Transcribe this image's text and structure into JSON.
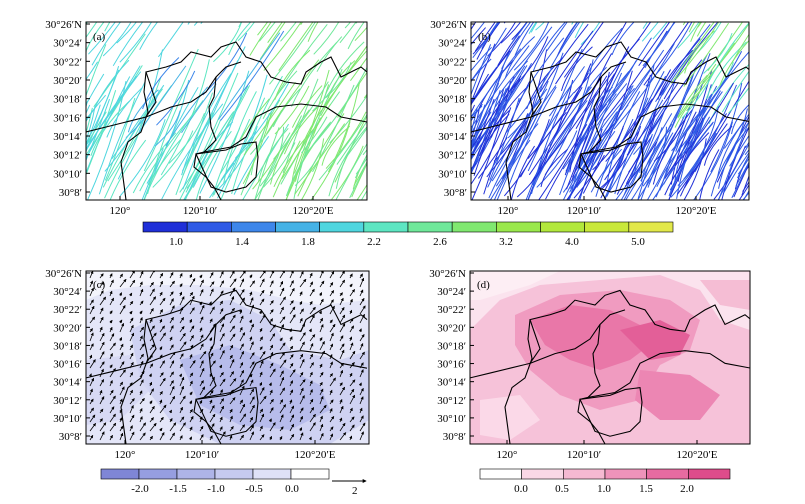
{
  "figure": {
    "panel_labels": [
      "(a)",
      "(b)",
      "(c)",
      "(d)"
    ],
    "y_ticks": [
      "30°26′N",
      "30°24′",
      "30°22′",
      "30°20′",
      "30°18′",
      "30°16′",
      "30°14′",
      "30°12′",
      "30°10′",
      "30°8′"
    ],
    "x_ticks": [
      "120°",
      "120°10′",
      "120°20′E"
    ]
  },
  "chart_data": [
    {
      "panel": "(a)",
      "type": "streamline",
      "field": "wind speed streamlines",
      "colorbar_ref": "shared colorbar 1.0–5.0"
    },
    {
      "panel": "(b)",
      "type": "streamline",
      "field": "wind speed streamlines",
      "colorbar_ref": "shared colorbar 1.0–5.0"
    },
    {
      "panel": "(c)",
      "type": "vector+shaded",
      "field": "wind vectors over shaded difference",
      "reference_vector": "2",
      "colorbar": {
        "labels": [
          "-2.0",
          "-1.5",
          "-1.0",
          "-0.5",
          "0.0"
        ],
        "colors": [
          "#7f86d6",
          "#969ee0",
          "#aeb4e8",
          "#c6caf0",
          "#dfe1f7",
          "#ffffff"
        ]
      }
    },
    {
      "panel": "(d)",
      "type": "shaded",
      "field": "shaded difference",
      "colorbar": {
        "labels": [
          "0.0",
          "0.5",
          "1.0",
          "1.5",
          "2.0"
        ],
        "colors": [
          "#ffffff",
          "#f9d8e6",
          "#f5b9d2",
          "#ee93ba",
          "#e76ba1",
          "#de4c8b"
        ]
      }
    },
    {
      "panel": "shared (a,b)",
      "type": "colorbar",
      "labels": [
        "1.0",
        "1.4",
        "1.8",
        "2.2",
        "2.6",
        "3.2",
        "4.0",
        "5.0"
      ],
      "colors": [
        "#1f2fd8",
        "#2f5ae6",
        "#3d86ea",
        "#45b2e6",
        "#4fd6df",
        "#5de6c2",
        "#6fe89a",
        "#80e870",
        "#9ae84c",
        "#b2e83c",
        "#c9e83a",
        "#e2e84a"
      ]
    }
  ]
}
